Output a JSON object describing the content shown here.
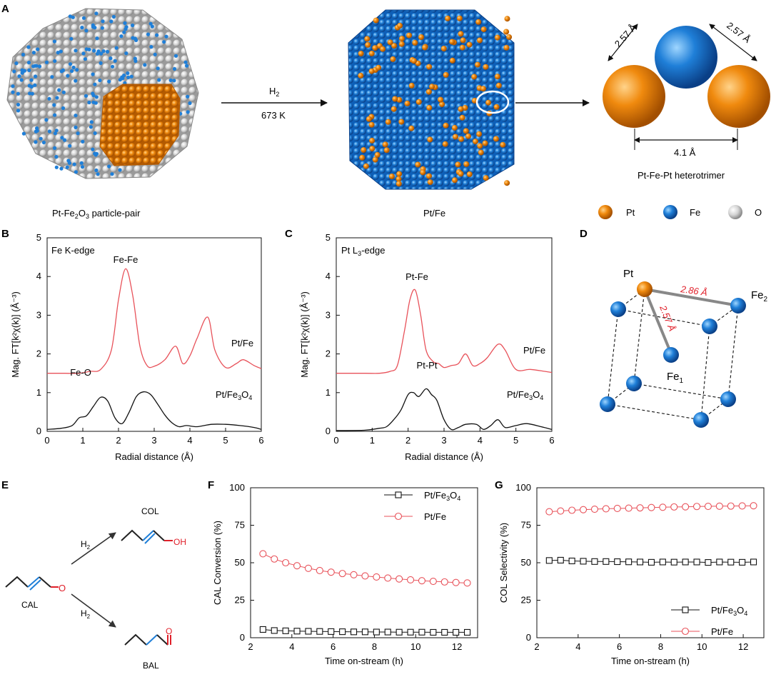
{
  "panel_letters": {
    "a": "A",
    "b": "B",
    "c": "C",
    "d": "D",
    "e": "E",
    "f": "F",
    "g": "G"
  },
  "panel_a": {
    "arrow_top": "H",
    "arrow_top_sub": "2",
    "arrow_bottom": "673 K",
    "left_caption_pre": "Pt-Fe",
    "left_caption_sub": "2",
    "left_caption_mid": "O",
    "left_caption_sub2": "3",
    "left_caption_post": " particle-pair",
    "middle_caption": "Pt/Fe",
    "trimer_caption": "Pt-Fe-Pt heterotrimer",
    "dist_left": "2.57 Å",
    "dist_right": "2.57 Å",
    "dist_bottom": "4.1 Å",
    "legend": [
      {
        "label": "Pt",
        "color": "#f08a0e"
      },
      {
        "label": "Fe",
        "color": "#1f7fd8"
      },
      {
        "label": "O",
        "color": "#d4d4d4"
      }
    ]
  },
  "panel_d": {
    "pt_label": "Pt",
    "fe2_label": "Fe",
    "fe2_sub": "2",
    "fe1_label": "Fe",
    "fe1_sub": "1",
    "bond_long": "2.86 Å",
    "bond_short": "2.57 Å"
  },
  "panel_e": {
    "col": "COL",
    "cal": "CAL",
    "bal": "BAL",
    "h2": "H",
    "h2_sub": "2",
    "oh": "OH",
    "o": "O"
  },
  "colors": {
    "pt": "#f08a0e",
    "fe": "#1f7fd8",
    "o": "#d4d4d4",
    "red": "#e8525a",
    "black": "#111111"
  },
  "chart_data": [
    {
      "id": "B",
      "type": "line",
      "annotation": "Fe K-edge",
      "xlabel": "Radial distance (Å)",
      "ylabel": "Mag. FT[k²χ(k)] (Å⁻³)",
      "xlim": [
        0,
        6
      ],
      "ylim": [
        0,
        5
      ],
      "xticks": [
        0,
        1,
        2,
        3,
        4,
        5,
        6
      ],
      "yticks": [
        0,
        1,
        2,
        3,
        4,
        5
      ],
      "peak_labels": [
        {
          "text": "Fe-Fe"
        },
        {
          "text": "Fe-O"
        }
      ],
      "series": [
        {
          "name": "Pt/Fe",
          "color": "#e8525a",
          "x": [
            0,
            0.5,
            0.9,
            1.2,
            1.5,
            1.8,
            2.0,
            2.2,
            2.4,
            2.6,
            2.8,
            3.0,
            3.3,
            3.6,
            3.8,
            4.0,
            4.2,
            4.5,
            4.7,
            5.0,
            5.3,
            5.5,
            5.8,
            6.0
          ],
          "y": [
            1.5,
            1.5,
            1.5,
            1.55,
            1.6,
            2.1,
            3.4,
            4.2,
            3.5,
            2.2,
            1.7,
            1.68,
            1.85,
            2.2,
            1.75,
            1.95,
            2.4,
            2.95,
            2.1,
            1.65,
            1.75,
            1.85,
            1.7,
            1.62
          ]
        },
        {
          "name": "Pt/Fe₃O₄",
          "color": "#111111",
          "x": [
            0,
            0.4,
            0.7,
            0.9,
            1.1,
            1.3,
            1.5,
            1.7,
            1.9,
            2.1,
            2.3,
            2.5,
            2.7,
            2.9,
            3.1,
            3.3,
            3.5,
            3.7,
            3.9,
            4.2,
            4.6,
            5.0,
            5.4,
            5.8,
            6.0
          ],
          "y": [
            0.05,
            0.08,
            0.15,
            0.35,
            0.4,
            0.65,
            0.88,
            0.78,
            0.35,
            0.2,
            0.5,
            0.9,
            1.02,
            0.95,
            0.7,
            0.42,
            0.22,
            0.12,
            0.15,
            0.12,
            0.18,
            0.18,
            0.15,
            0.1,
            0.05
          ]
        }
      ]
    },
    {
      "id": "C",
      "type": "line",
      "annotation_pre": "Pt L",
      "annotation_sub": "3",
      "annotation_post": "-edge",
      "xlabel": "Radial distance (Å)",
      "ylabel": "Mag. FT[k²χ(k)] (Å⁻³)",
      "xlim": [
        0,
        6
      ],
      "ylim": [
        0,
        5
      ],
      "xticks": [
        0,
        1,
        2,
        3,
        4,
        5,
        6
      ],
      "yticks": [
        0,
        1,
        2,
        3,
        4,
        5
      ],
      "peak_labels": [
        {
          "text": "Pt-Fe"
        },
        {
          "text": "Pt-Pt"
        }
      ],
      "series": [
        {
          "name": "Pt/Fe",
          "color": "#e8525a",
          "x": [
            0,
            0.8,
            1.2,
            1.5,
            1.7,
            1.9,
            2.05,
            2.2,
            2.35,
            2.5,
            2.7,
            2.85,
            3.0,
            3.2,
            3.4,
            3.6,
            3.8,
            4.0,
            4.2,
            4.5,
            4.7,
            5.0,
            5.4,
            5.8,
            6.0
          ],
          "y": [
            1.5,
            1.5,
            1.5,
            1.55,
            1.7,
            2.6,
            3.4,
            3.65,
            3.0,
            2.1,
            1.8,
            1.75,
            1.65,
            1.7,
            1.75,
            2.0,
            1.7,
            1.75,
            1.9,
            2.25,
            2.1,
            1.6,
            1.6,
            1.55,
            1.52
          ]
        },
        {
          "name": "Pt/Fe₃O₄",
          "color": "#111111",
          "x": [
            0,
            0.8,
            1.2,
            1.4,
            1.6,
            1.8,
            2.0,
            2.15,
            2.3,
            2.5,
            2.65,
            2.8,
            3.0,
            3.2,
            3.4,
            3.6,
            3.9,
            4.1,
            4.3,
            4.5,
            4.7,
            5.0,
            5.3,
            5.7,
            6.0
          ],
          "y": [
            0.02,
            0.03,
            0.08,
            0.12,
            0.3,
            0.55,
            0.95,
            1.0,
            0.9,
            1.1,
            0.95,
            0.8,
            0.3,
            0.05,
            0.1,
            0.18,
            0.18,
            0.05,
            0.15,
            0.3,
            0.1,
            0.15,
            0.2,
            0.12,
            0.05
          ]
        }
      ]
    },
    {
      "id": "F",
      "type": "line",
      "xlabel": "Time on-stream (h)",
      "ylabel": "CAL Conversion (%)",
      "xlim": [
        2,
        13
      ],
      "ylim": [
        0,
        100
      ],
      "xticks": [
        2,
        4,
        6,
        8,
        10,
        12
      ],
      "yticks": [
        0,
        25,
        50,
        75,
        100
      ],
      "legend_position": "top-right",
      "series": [
        {
          "name_pre": "Pt/Fe",
          "name_sub": "3",
          "name_mid": "O",
          "name_sub2": "4",
          "marker": "square",
          "color": "#111111",
          "x": [
            2.6,
            3.15,
            3.7,
            4.25,
            4.8,
            5.35,
            5.9,
            6.45,
            7.0,
            7.55,
            8.1,
            8.65,
            9.2,
            9.75,
            10.3,
            10.85,
            11.4,
            11.95,
            12.5
          ],
          "y": [
            5.5,
            4.8,
            4.6,
            4.4,
            4.3,
            4.2,
            4.1,
            4.0,
            3.9,
            3.9,
            3.8,
            3.8,
            3.7,
            3.7,
            3.7,
            3.6,
            3.6,
            3.6,
            3.6
          ]
        },
        {
          "name_pre": "Pt/Fe",
          "marker": "circle",
          "color": "#e8525a",
          "x": [
            2.6,
            3.15,
            3.7,
            4.25,
            4.8,
            5.35,
            5.9,
            6.45,
            7.0,
            7.55,
            8.1,
            8.65,
            9.2,
            9.75,
            10.3,
            10.85,
            11.4,
            11.95,
            12.5
          ],
          "y": [
            56,
            52.5,
            50,
            48,
            46.3,
            44.8,
            43.7,
            42.8,
            42,
            41.2,
            40.5,
            39.8,
            39.2,
            38.6,
            38,
            37.6,
            37.2,
            36.8,
            36.5
          ]
        }
      ]
    },
    {
      "id": "G",
      "type": "line",
      "xlabel": "Time on-stream (h)",
      "ylabel": "COL Selectivity (%)",
      "xlim": [
        2,
        13
      ],
      "ylim": [
        0,
        100
      ],
      "xticks": [
        2,
        4,
        6,
        8,
        10,
        12
      ],
      "yticks": [
        0,
        25,
        50,
        75,
        100
      ],
      "legend_position": "bottom-right",
      "series": [
        {
          "name_pre": "Pt/Fe",
          "name_sub": "3",
          "name_mid": "O",
          "name_sub2": "4",
          "marker": "square",
          "color": "#111111",
          "x": [
            2.6,
            3.15,
            3.7,
            4.25,
            4.8,
            5.35,
            5.9,
            6.45,
            7.0,
            7.55,
            8.1,
            8.65,
            9.2,
            9.75,
            10.3,
            10.85,
            11.4,
            11.95,
            12.5
          ],
          "y": [
            51.5,
            51.7,
            51.2,
            51.0,
            50.8,
            50.8,
            50.7,
            50.6,
            50.5,
            50.3,
            50.5,
            50.4,
            50.5,
            50.5,
            50.2,
            50.5,
            50.4,
            50.3,
            50.5
          ]
        },
        {
          "name_pre": "Pt/Fe",
          "marker": "circle",
          "color": "#e8525a",
          "x": [
            2.6,
            3.15,
            3.7,
            4.25,
            4.8,
            5.35,
            5.9,
            6.45,
            7.0,
            7.55,
            8.1,
            8.65,
            9.2,
            9.75,
            10.3,
            10.85,
            11.4,
            11.95,
            12.5
          ],
          "y": [
            84,
            84.5,
            85,
            85.4,
            85.7,
            86,
            86.2,
            86.4,
            86.6,
            86.8,
            87,
            87.2,
            87.3,
            87.5,
            87.6,
            87.7,
            87.8,
            87.9,
            88
          ]
        }
      ]
    }
  ]
}
